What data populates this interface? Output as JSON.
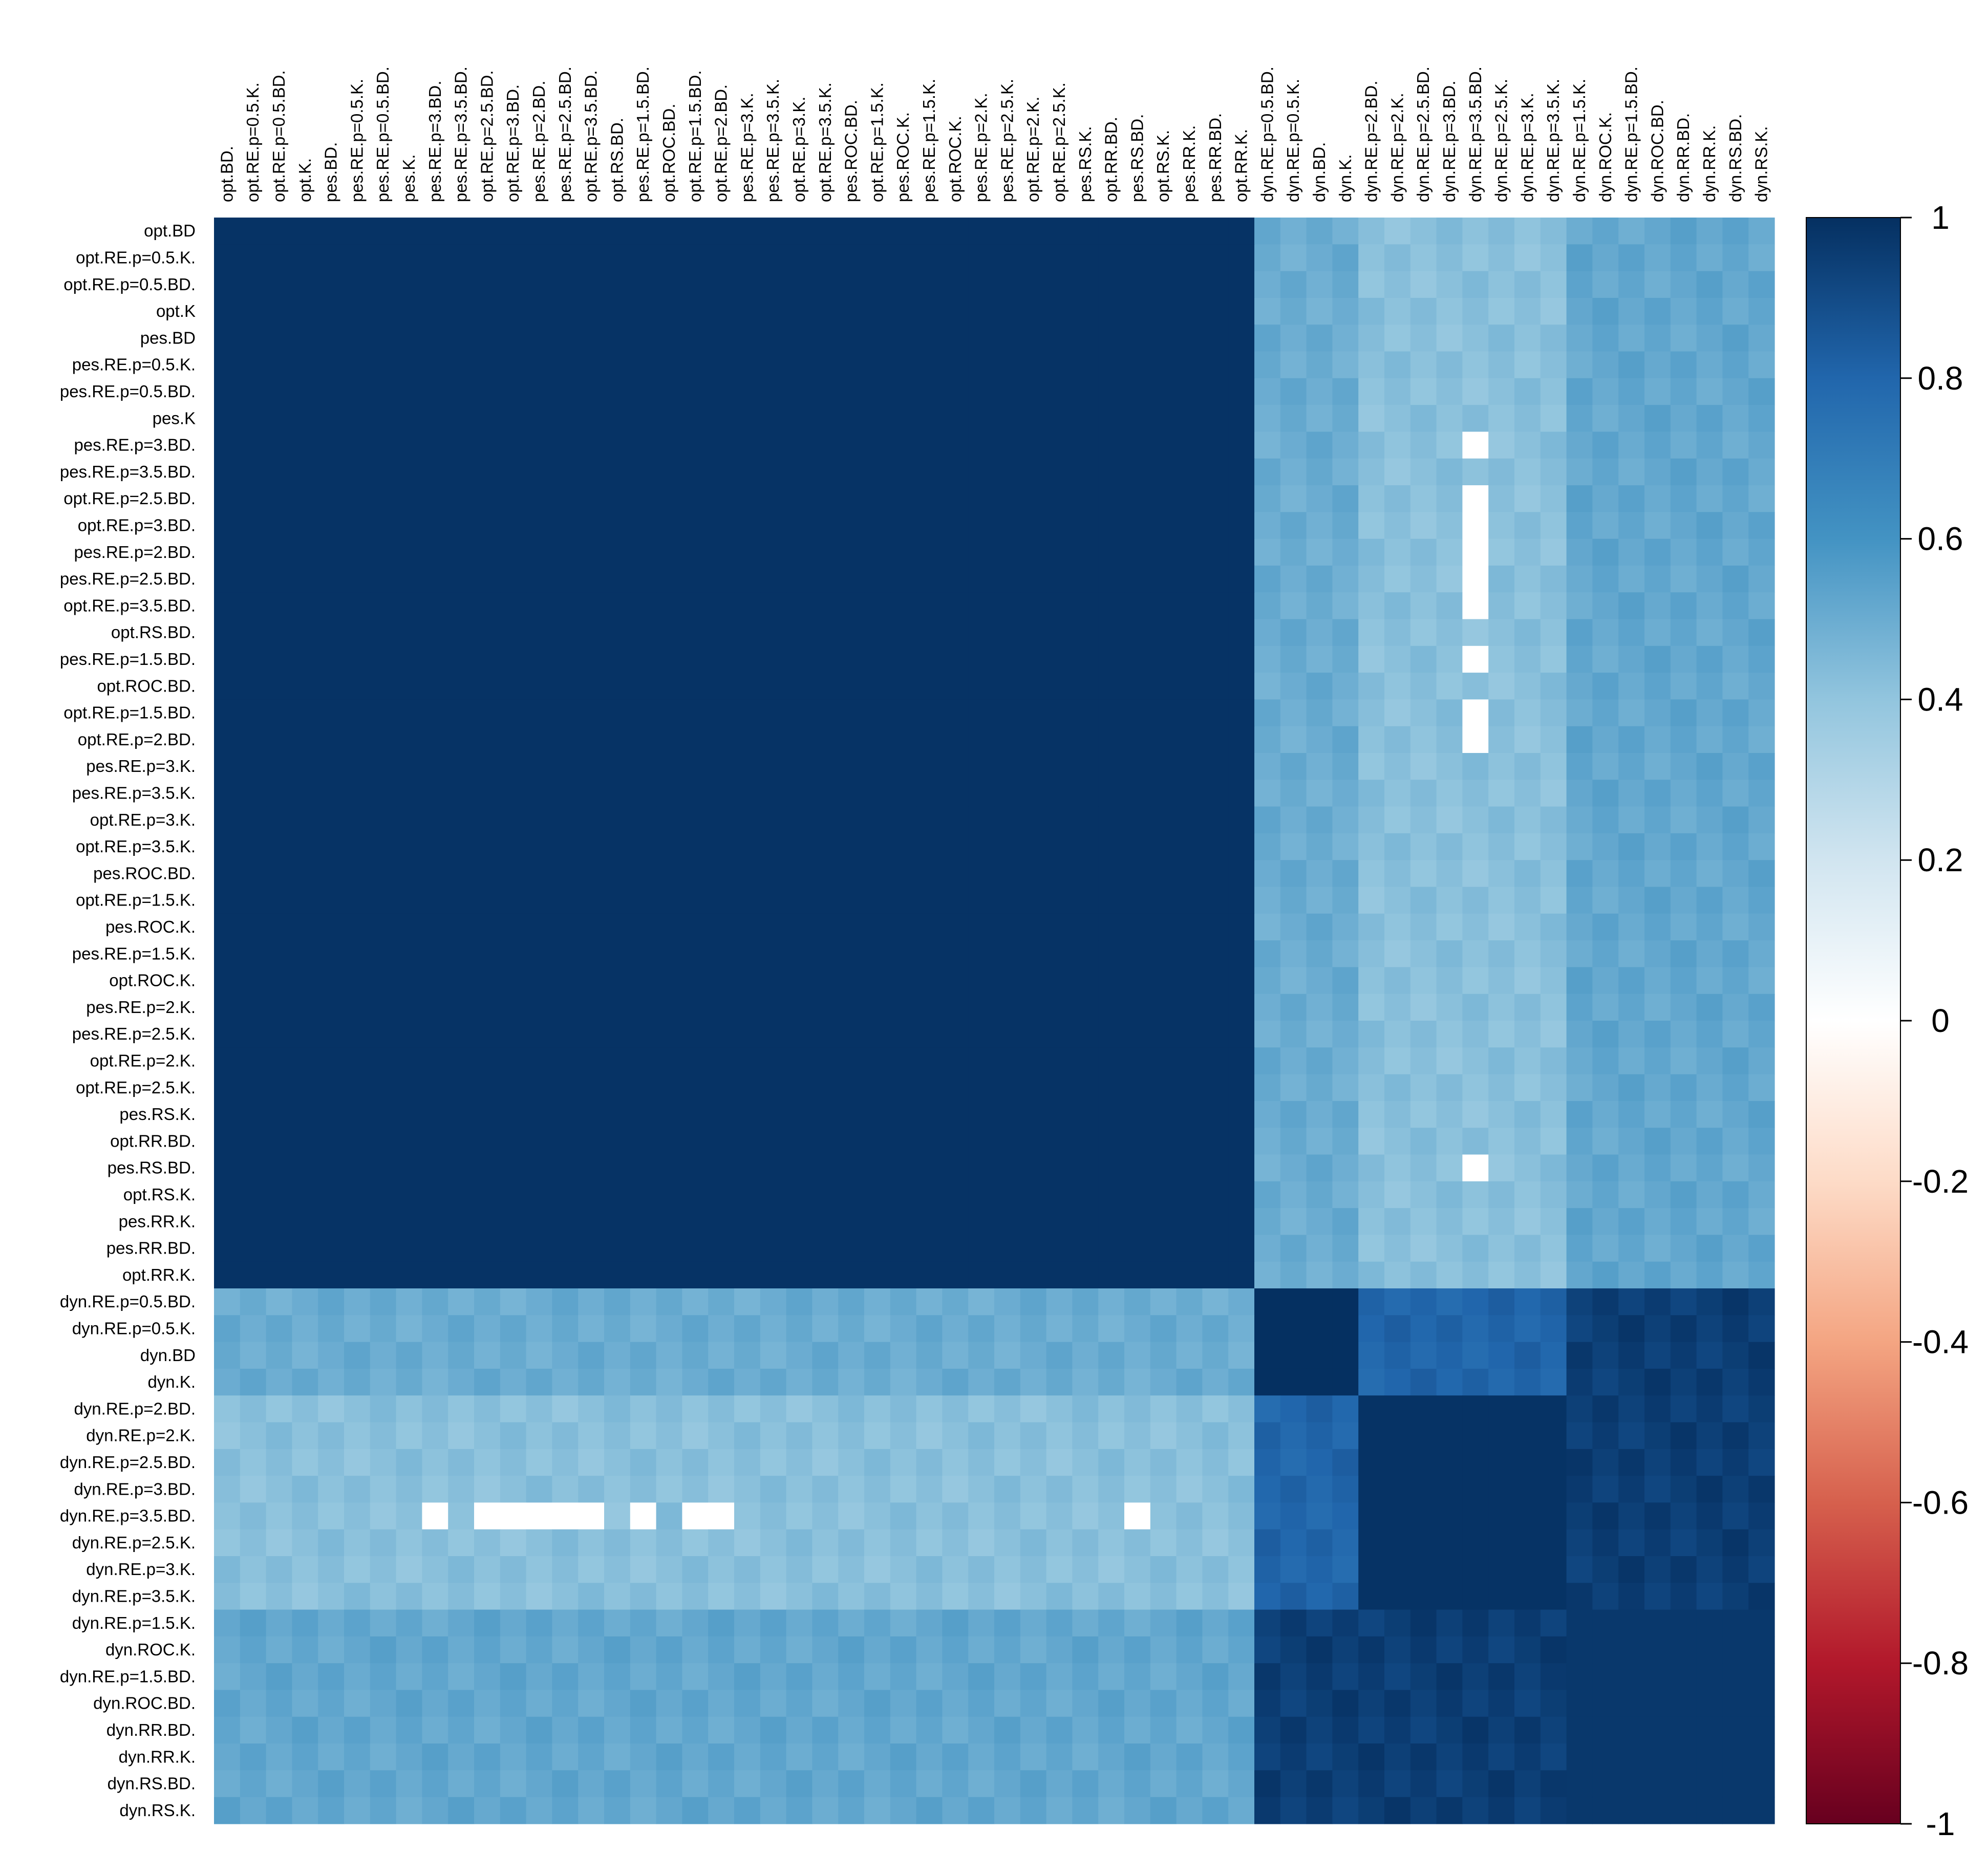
{
  "chart_data": {
    "type": "heatmap",
    "title": "",
    "xlabel": "",
    "ylabel": "",
    "columns": [
      "opt.BD.",
      "opt.RE.p=0.5.K.",
      "opt.RE.p=0.5.BD.",
      "opt.K.",
      "pes.BD.",
      "pes.RE.p=0.5.K.",
      "pes.RE.p=0.5.BD.",
      "pes.K.",
      "pes.RE.p=3.BD.",
      "pes.RE.p=3.5.BD.",
      "opt.RE.p=2.5.BD.",
      "opt.RE.p=3.BD.",
      "pes.RE.p=2.BD.",
      "pes.RE.p=2.5.BD.",
      "opt.RE.p=3.5.BD.",
      "opt.RS.BD.",
      "pes.RE.p=1.5.BD.",
      "opt.ROC.BD.",
      "opt.RE.p=1.5.BD.",
      "opt.RE.p=2.BD.",
      "pes.RE.p=3.K.",
      "pes.RE.p=3.5.K.",
      "opt.RE.p=3.K.",
      "opt.RE.p=3.5.K.",
      "pes.ROC.BD.",
      "opt.RE.p=1.5.K.",
      "pes.ROC.K.",
      "pes.RE.p=1.5.K.",
      "opt.ROC.K.",
      "pes.RE.p=2.K.",
      "pes.RE.p=2.5.K.",
      "opt.RE.p=2.K.",
      "opt.RE.p=2.5.K.",
      "pes.RS.K.",
      "opt.RR.BD.",
      "pes.RS.BD.",
      "opt.RS.K.",
      "pes.RR.K.",
      "pes.RR.BD.",
      "opt.RR.K.",
      "dyn.RE.p=0.5.BD.",
      "dyn.RE.p=0.5.K.",
      "dyn.BD.",
      "dyn.K.",
      "dyn.RE.p=2.BD.",
      "dyn.RE.p=2.K.",
      "dyn.RE.p=2.5.BD.",
      "dyn.RE.p=3.BD.",
      "dyn.RE.p=3.5.BD.",
      "dyn.RE.p=2.5.K.",
      "dyn.RE.p=3.K.",
      "dyn.RE.p=3.5.K.",
      "dyn.RE.p=1.5.K.",
      "dyn.ROC.K.",
      "dyn.RE.p=1.5.BD.",
      "dyn.ROC.BD.",
      "dyn.RR.BD.",
      "dyn.RR.K.",
      "dyn.RS.BD.",
      "dyn.RS.K."
    ],
    "rows": [
      "opt.BD",
      "opt.RE.p=0.5.K.",
      "opt.RE.p=0.5.BD.",
      "opt.K",
      "pes.BD",
      "pes.RE.p=0.5.K.",
      "pes.RE.p=0.5.BD.",
      "pes.K",
      "pes.RE.p=3.BD.",
      "pes.RE.p=3.5.BD.",
      "opt.RE.p=2.5.BD.",
      "opt.RE.p=3.BD.",
      "pes.RE.p=2.BD.",
      "pes.RE.p=2.5.BD.",
      "opt.RE.p=3.5.BD.",
      "opt.RS.BD.",
      "pes.RE.p=1.5.BD.",
      "opt.ROC.BD.",
      "opt.RE.p=1.5.BD.",
      "opt.RE.p=2.BD.",
      "pes.RE.p=3.K.",
      "pes.RE.p=3.5.K.",
      "opt.RE.p=3.K.",
      "opt.RE.p=3.5.K.",
      "pes.ROC.BD.",
      "opt.RE.p=1.5.K.",
      "pes.ROC.K.",
      "pes.RE.p=1.5.K.",
      "opt.ROC.K.",
      "pes.RE.p=2.K.",
      "pes.RE.p=2.5.K.",
      "opt.RE.p=2.K.",
      "opt.RE.p=2.5.K.",
      "pes.RS.K.",
      "opt.RR.BD.",
      "pes.RS.BD.",
      "opt.RS.K.",
      "pes.RR.K.",
      "pes.RR.BD.",
      "opt.RR.K.",
      "dyn.RE.p=0.5.BD.",
      "dyn.RE.p=0.5.K.",
      "dyn.BD",
      "dyn.K.",
      "dyn.RE.p=2.BD.",
      "dyn.RE.p=2.K.",
      "dyn.RE.p=2.5.BD.",
      "dyn.RE.p=3.BD.",
      "dyn.RE.p=3.5.BD.",
      "dyn.RE.p=2.5.K.",
      "dyn.RE.p=3.K.",
      "dyn.RE.p=3.5.K.",
      "dyn.RE.p=1.5.K.",
      "dyn.ROC.K.",
      "dyn.RE.p=1.5.BD.",
      "dyn.ROC.BD.",
      "dyn.RR.BD.",
      "dyn.RR.K.",
      "dyn.RS.BD.",
      "dyn.RS.K."
    ],
    "value_approximation": {
      "within_opt_pes": 0.99,
      "opt_pes_vs_dyn": 0.5,
      "within_dyn_core_0.5": 1.0,
      "within_dyn_RE_group": 0.99,
      "within_dyn_tail_group": 0.97,
      "dyn_core_vs_RE_group": 0.8,
      "dyn_core_vs_tail": 0.95,
      "dyn_RE_vs_tail": 0.95,
      "missing_value": null,
      "missing_cells_row_dyn.RE.p=3.5.BD.": [
        "pes.RE.p=3.BD.",
        "opt.RE.p=2.5.BD.",
        "opt.RE.p=3.BD.",
        "pes.RE.p=2.BD.",
        "pes.RE.p=2.5.BD.",
        "opt.RE.p=3.5.BD.",
        "pes.RE.p=1.5.BD.",
        "opt.RE.p=1.5.BD.",
        "opt.RE.p=2.BD.",
        "pes.RS.BD."
      ]
    },
    "colorbar": {
      "min": -1,
      "max": 1,
      "ticks": [
        "1",
        "0.8",
        "0.6",
        "0.4",
        "0.2",
        "0",
        "-0.2",
        "-0.4",
        "-0.6",
        "-0.8",
        "-1"
      ],
      "colors": [
        "#67001f",
        "#b2182b",
        "#d6604d",
        "#f4a582",
        "#fddbc7",
        "#ffffff",
        "#d1e5f0",
        "#92c5de",
        "#4393c3",
        "#2166ac",
        "#053061"
      ]
    }
  }
}
